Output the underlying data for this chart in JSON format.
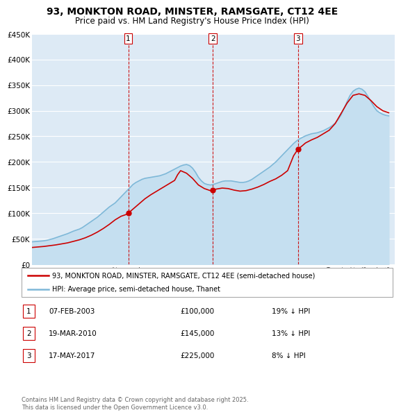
{
  "title": "93, MONKTON ROAD, MINSTER, RAMSGATE, CT12 4EE",
  "subtitle": "Price paid vs. HM Land Registry's House Price Index (HPI)",
  "legend_line1": "93, MONKTON ROAD, MINSTER, RAMSGATE, CT12 4EE (semi-detached house)",
  "legend_line2": "HPI: Average price, semi-detached house, Thanet",
  "footer": "Contains HM Land Registry data © Crown copyright and database right 2025.\nThis data is licensed under the Open Government Licence v3.0.",
  "sale_color": "#cc0000",
  "hpi_color": "#7eb8d8",
  "hpi_fill_color": "#c5dff0",
  "vline_color": "#cc0000",
  "plot_bg_color": "#ddeaf5",
  "grid_color": "#ffffff",
  "ylim": [
    0,
    450000
  ],
  "yticks": [
    0,
    50000,
    100000,
    150000,
    200000,
    250000,
    300000,
    350000,
    400000,
    450000
  ],
  "xlim_start": 1995,
  "xlim_end": 2025.5,
  "sales": [
    {
      "date_num": 2003.1,
      "price": 100000,
      "label": "1"
    },
    {
      "date_num": 2010.21,
      "price": 145000,
      "label": "2"
    },
    {
      "date_num": 2017.37,
      "price": 225000,
      "label": "3"
    }
  ],
  "sale_notes": [
    {
      "label": "1",
      "date_str": "07-FEB-2003",
      "price_str": "£100,000",
      "note": "19% ↓ HPI"
    },
    {
      "label": "2",
      "date_str": "19-MAR-2010",
      "price_str": "£145,000",
      "note": "13% ↓ HPI"
    },
    {
      "label": "3",
      "date_str": "17-MAY-2017",
      "price_str": "£225,000",
      "note": "8% ↓ HPI"
    }
  ],
  "hpi_years": [
    1995.0,
    1995.25,
    1995.5,
    1995.75,
    1996.0,
    1996.25,
    1996.5,
    1996.75,
    1997.0,
    1997.25,
    1997.5,
    1997.75,
    1998.0,
    1998.25,
    1998.5,
    1998.75,
    1999.0,
    1999.25,
    1999.5,
    1999.75,
    2000.0,
    2000.25,
    2000.5,
    2000.75,
    2001.0,
    2001.25,
    2001.5,
    2001.75,
    2002.0,
    2002.25,
    2002.5,
    2002.75,
    2003.0,
    2003.25,
    2003.5,
    2003.75,
    2004.0,
    2004.25,
    2004.5,
    2004.75,
    2005.0,
    2005.25,
    2005.5,
    2005.75,
    2006.0,
    2006.25,
    2006.5,
    2006.75,
    2007.0,
    2007.25,
    2007.5,
    2007.75,
    2008.0,
    2008.25,
    2008.5,
    2008.75,
    2009.0,
    2009.25,
    2009.5,
    2009.75,
    2010.0,
    2010.25,
    2010.5,
    2010.75,
    2011.0,
    2011.25,
    2011.5,
    2011.75,
    2012.0,
    2012.25,
    2012.5,
    2012.75,
    2013.0,
    2013.25,
    2013.5,
    2013.75,
    2014.0,
    2014.25,
    2014.5,
    2014.75,
    2015.0,
    2015.25,
    2015.5,
    2015.75,
    2016.0,
    2016.25,
    2016.5,
    2016.75,
    2017.0,
    2017.25,
    2017.5,
    2017.75,
    2018.0,
    2018.25,
    2018.5,
    2018.75,
    2019.0,
    2019.25,
    2019.5,
    2019.75,
    2020.0,
    2020.25,
    2020.5,
    2020.75,
    2021.0,
    2021.25,
    2021.5,
    2021.75,
    2022.0,
    2022.25,
    2022.5,
    2022.75,
    2023.0,
    2023.25,
    2023.5,
    2023.75,
    2024.0,
    2024.25,
    2024.5,
    2024.75,
    2025.0
  ],
  "hpi_values": [
    44000,
    44500,
    45000,
    45500,
    46000,
    47000,
    48500,
    50000,
    52000,
    54000,
    56000,
    58000,
    60000,
    62500,
    65000,
    67000,
    69000,
    72000,
    76000,
    80000,
    84000,
    88000,
    92000,
    97000,
    102000,
    107000,
    112000,
    116000,
    120000,
    126000,
    132000,
    138000,
    144000,
    150000,
    156000,
    160000,
    163000,
    166000,
    168000,
    169000,
    170000,
    171000,
    172000,
    173000,
    175000,
    177000,
    180000,
    183000,
    186000,
    189000,
    192000,
    194000,
    195000,
    193000,
    188000,
    180000,
    170000,
    163000,
    158000,
    156000,
    155000,
    156000,
    158000,
    160000,
    162000,
    163000,
    163000,
    163000,
    162000,
    161000,
    160000,
    160000,
    161000,
    163000,
    166000,
    170000,
    174000,
    178000,
    182000,
    186000,
    190000,
    195000,
    200000,
    206000,
    212000,
    218000,
    224000,
    230000,
    236000,
    241000,
    245000,
    248000,
    251000,
    253000,
    255000,
    256000,
    257000,
    259000,
    261000,
    264000,
    267000,
    271000,
    276000,
    283000,
    292000,
    305000,
    318000,
    330000,
    338000,
    342000,
    344000,
    342000,
    337000,
    328000,
    318000,
    308000,
    300000,
    296000,
    293000,
    291000,
    290000
  ],
  "prop_years": [
    1995.0,
    1995.5,
    1996.0,
    1996.5,
    1997.0,
    1997.5,
    1998.0,
    1998.5,
    1999.0,
    1999.5,
    2000.0,
    2000.5,
    2001.0,
    2001.5,
    2002.0,
    2002.5,
    2003.0,
    2003.1,
    2003.5,
    2004.0,
    2004.5,
    2005.0,
    2005.5,
    2006.0,
    2006.5,
    2007.0,
    2007.25,
    2007.5,
    2008.0,
    2008.5,
    2009.0,
    2009.5,
    2010.0,
    2010.21,
    2010.5,
    2011.0,
    2011.5,
    2012.0,
    2012.5,
    2013.0,
    2013.5,
    2014.0,
    2014.5,
    2015.0,
    2015.5,
    2016.0,
    2016.5,
    2017.0,
    2017.37,
    2017.75,
    2018.0,
    2018.5,
    2019.0,
    2019.5,
    2020.0,
    2020.5,
    2021.0,
    2021.5,
    2022.0,
    2022.5,
    2023.0,
    2023.5,
    2024.0,
    2024.5,
    2025.0
  ],
  "prop_values": [
    33000,
    34000,
    35000,
    36500,
    38000,
    40000,
    42000,
    45000,
    48000,
    52000,
    57000,
    63000,
    70000,
    78000,
    87000,
    94000,
    98000,
    100000,
    108000,
    118000,
    128000,
    136000,
    143000,
    150000,
    157000,
    164000,
    175000,
    183000,
    178000,
    168000,
    155000,
    148000,
    144000,
    145000,
    147000,
    149000,
    148000,
    145000,
    143000,
    144000,
    147000,
    151000,
    156000,
    162000,
    167000,
    174000,
    183000,
    212000,
    225000,
    232000,
    237000,
    243000,
    248000,
    255000,
    262000,
    275000,
    295000,
    315000,
    330000,
    333000,
    330000,
    320000,
    308000,
    300000,
    296000
  ]
}
